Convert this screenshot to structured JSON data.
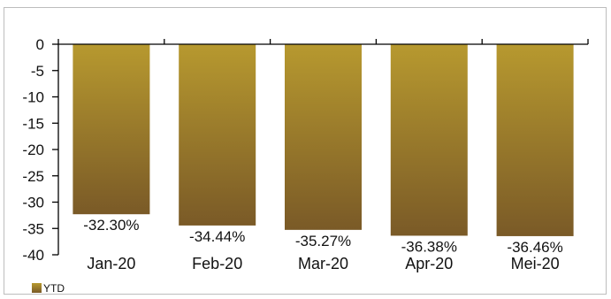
{
  "chart_data": {
    "type": "bar",
    "categories": [
      "Jan-20",
      "Feb-20",
      "Mar-20",
      "Apr-20",
      "Mei-20"
    ],
    "series": [
      {
        "name": "YTD",
        "values": [
          -32.3,
          -34.44,
          -35.27,
          -36.38,
          -36.46
        ],
        "data_labels": [
          "-32.30%",
          "-34.44%",
          "-35.27%",
          "-36.38%",
          "-36.46%"
        ]
      }
    ],
    "ylim": [
      -40,
      0
    ],
    "yticks": [
      0,
      -5,
      -10,
      -15,
      -20,
      -25,
      -30,
      -35,
      -40
    ],
    "title": "",
    "xlabel": "",
    "ylabel": "",
    "grid": false,
    "legend_position": "bottom-left",
    "colors": {
      "bar_top": "#b7992f",
      "bar_bottom": "#7a5a27",
      "axis": "#000000",
      "frame": "#bdbdbd"
    }
  }
}
